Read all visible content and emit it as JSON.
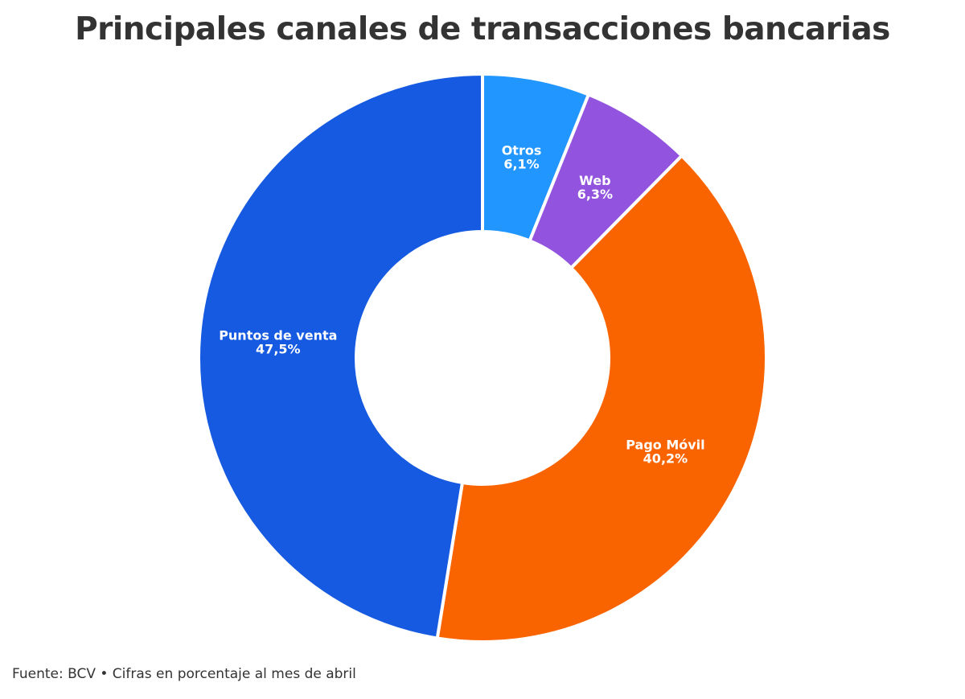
{
  "title": "Principales canales de transacciones bancarias",
  "footer": "Fuente: BCV • Cifras en porcentaje al mes de abril",
  "chart_data": {
    "type": "pie",
    "variant": "donut",
    "title": "Principales canales de transacciones bancarias",
    "slices": [
      {
        "label": "Otros",
        "value": 6.1,
        "display": "6,1%",
        "color": "#2196ff"
      },
      {
        "label": "Web",
        "value": 6.3,
        "display": "6,3%",
        "color": "#9254de"
      },
      {
        "label": "Pago Móvil",
        "value": 40.2,
        "display": "40,2%",
        "color": "#fa6400"
      },
      {
        "label": "Puntos de venta",
        "value": 47.5,
        "display": "47,5%",
        "color": "#155ae0"
      }
    ],
    "start": "top",
    "direction": "clockwise",
    "legend": "none"
  }
}
